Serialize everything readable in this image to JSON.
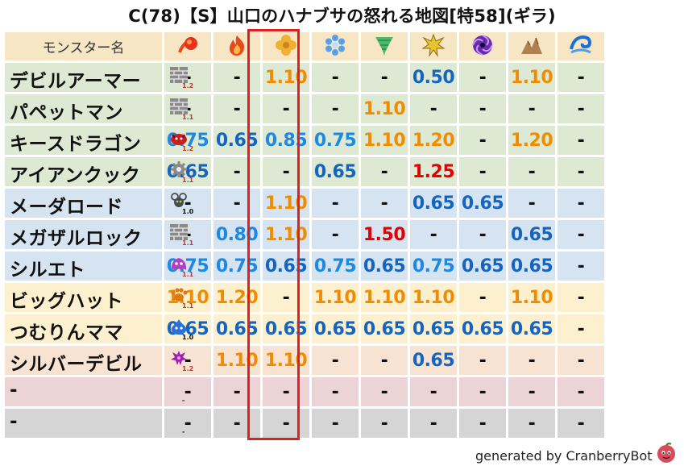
{
  "title": "C(78)【S】山口のハナブサの怒れる地図[特58](ギラ)",
  "header": {
    "name_label": "モンスター名",
    "icons": [
      "fire-ball-icon",
      "flame-icon",
      "wind-clover-icon",
      "ice-crystal-icon",
      "tornado-icon",
      "explosion-icon",
      "dark-swirl-icon",
      "earth-rocks-icon",
      "water-wave-icon"
    ]
  },
  "rows": [
    {
      "name": "デビルアーマー",
      "type_icon": "brick-wall-icon",
      "rank": "1.2",
      "color": "green",
      "values": [
        "-",
        "-",
        "1.10",
        "-",
        "-",
        "0.50",
        "-",
        "1.10",
        "-"
      ]
    },
    {
      "name": "パペットマン",
      "type_icon": "brick-wall-icon",
      "rank": "1.1",
      "color": "green",
      "values": [
        "-",
        "-",
        "-",
        "-",
        "1.10",
        "-",
        "-",
        "-",
        "-"
      ]
    },
    {
      "name": "キースドラゴン",
      "type_icon": "dragon-icon",
      "rank": "1.2",
      "color": "green",
      "values": [
        "0.75",
        "0.65",
        "0.85",
        "0.75",
        "1.10",
        "1.20",
        "-",
        "1.20",
        "-"
      ]
    },
    {
      "name": "アイアンクック",
      "type_icon": "gear-icon",
      "rank": "1.1",
      "color": "green",
      "values": [
        "0.65",
        "-",
        "-",
        "0.65",
        "-",
        "1.25",
        "-",
        "-",
        "-"
      ]
    },
    {
      "name": "メーダロード",
      "type_icon": "bug-icon",
      "rank": "1.0",
      "color": "blue",
      "values": [
        "-",
        "-",
        "1.10",
        "-",
        "-",
        "0.65",
        "0.65",
        "-",
        "-"
      ]
    },
    {
      "name": "メガザルロック",
      "type_icon": "brick-wall-icon",
      "rank": "1.1",
      "color": "blue",
      "values": [
        "-",
        "0.80",
        "1.10",
        "-",
        "1.50",
        "-",
        "-",
        "0.65",
        "-"
      ]
    },
    {
      "name": "シルエト",
      "type_icon": "ghost-icon",
      "rank": "1.1",
      "color": "blue",
      "values": [
        "0.75",
        "0.75",
        "0.65",
        "0.75",
        "0.65",
        "0.75",
        "0.65",
        "0.65",
        "-"
      ]
    },
    {
      "name": "ビッグハット",
      "type_icon": "paw-icon",
      "rank": "1.1",
      "color": "yellow",
      "values": [
        "1.10",
        "1.20",
        "-",
        "1.10",
        "1.10",
        "1.10",
        "-",
        "1.10",
        "-"
      ]
    },
    {
      "name": "つむりんママ",
      "type_icon": "slime-icon",
      "rank": "1.0",
      "color": "yellow",
      "values": [
        "0.65",
        "0.65",
        "0.65",
        "0.65",
        "0.65",
        "0.65",
        "0.65",
        "0.65",
        "-"
      ]
    },
    {
      "name": "シルバーデビル",
      "type_icon": "devil-icon",
      "rank": "1.2",
      "color": "peach",
      "values": [
        "-",
        "1.10",
        "1.10",
        "-",
        "-",
        "0.65",
        "-",
        "-",
        "-"
      ]
    },
    {
      "name": "-",
      "type_icon": "",
      "rank": "-",
      "color": "pink",
      "values": [
        "-",
        "-",
        "-",
        "-",
        "-",
        "-",
        "-",
        "-",
        "-"
      ]
    },
    {
      "name": "-",
      "type_icon": "",
      "rank": "-",
      "color": "gray",
      "values": [
        "-",
        "-",
        "-",
        "-",
        "-",
        "-",
        "-",
        "-",
        "-"
      ]
    }
  ],
  "credit": "generated by CranberryBot",
  "colors": {
    "dash": "#111111",
    "blue": "#1565c0",
    "light_blue": "#1e88e5",
    "orange": "#f08c00",
    "red": "#e10000",
    "highlight": "#e02020"
  }
}
